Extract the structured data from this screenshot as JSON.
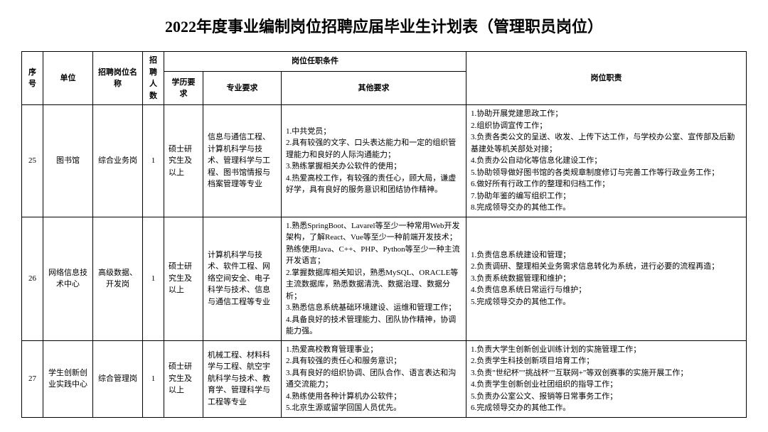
{
  "title": "2022年度事业编制岗位招聘应届毕业生计划表（管理职员岗位）",
  "headers": {
    "seq": "序号",
    "unit": "单位",
    "position": "招聘岗位名称",
    "count": "招聘人数",
    "conditions_group": "岗位任职条件",
    "edu": "学历要求",
    "major": "专业要求",
    "other": "其他要求",
    "duty": "岗位职责"
  },
  "rows": [
    {
      "seq": "25",
      "unit": "图书馆",
      "position": "综合业务岗",
      "count": "1",
      "edu": "硕士研究生及以上",
      "major": "信息与通信工程、计算机科学与技术、管理科学与工程、图书馆情报与档案管理等专业",
      "other": [
        "1.中共党员；",
        "2.具有较强的文字、口头表达能力和一定的组织管理能力和良好的人际沟通能力；",
        "3.熟练掌握相关办公软件的使用；",
        "4.热爱高校工作，有较强的责任心，顾大局，谦虚好学，具有良好的服务意识和团结协作精神。"
      ],
      "duty": [
        "1.协助开展党建思政工作；",
        "2.组织协调宣传工作；",
        "3.负责各类公文的呈送、收发、上传下达工作，与学校办公室、宣传部及后勤基建处等机关部处对接；",
        "4.负责办公自动化等信息化建设工作；",
        "5.协助领导做好图书馆的各类规章制度修订与完善工作等行政业务工作；",
        "6.做好所有行政工作的整理和归档工作；",
        "7.协助年鉴的编写组织工作；",
        "8.完成领导交办的其他工作。"
      ]
    },
    {
      "seq": "26",
      "unit": "网络信息技术中心",
      "position": "高级数据、开发岗",
      "count": "1",
      "edu": "硕士研究生及以上",
      "major": "计算机科学与技术、软件工程、网络空间安全、电子科学与技术、信息与通信工程等专业",
      "other": [
        "1.熟悉SpringBoot、Lavarel等至少一种常用Web开发架构，了解React、Vue等至少一种前端开发技术；熟练使用Java、C++、PHP、Python等至少一种主流开发语言；",
        "2.掌握数据库相关知识，熟悉MySQL、ORACLE等主流数据库，熟悉数据清洗、数据治理、数据分析；",
        "3.熟悉信息系统基础环境建设、运维和管理工作；",
        "4.具备良好的技术管理能力、团队协作精神，协调能力强。"
      ],
      "duty": [
        "1.负责信息系统建设和管理；",
        "2.负责调研、整理相关业务需求信息转化为系统，进行必要的流程再造；",
        "3.负责系统数据管理和维护；",
        "4.负责信息系统日常运行与维护；",
        "5.完成领导交办的其他工作。"
      ]
    },
    {
      "seq": "27",
      "unit": "学生创新创业实践中心",
      "position": "综合管理岗",
      "count": "1",
      "edu": "硕士研究生及以上",
      "major": "机械工程、材料科学与工程、航空宇航科学与技术、教育学、管理科学与工程等专业",
      "other": [
        "1.热爱高校教育管理事业；",
        "2.具有较强的责任心和服务意识；",
        "3.具有良好的组织协调、团队合作、语言表达和沟通交流能力；",
        "4.熟练使用各种计算机办公软件；",
        "5.北京生源或留学回国人员优先。"
      ],
      "duty": [
        "1.负责大学生创新创业训练计划的实施管理工作；",
        "2.负责学生科技创新项目培育工作；",
        "3.负责\"世纪杯\"\"挑战杯\"\"互联网+\"等双创赛事的实施开展工作；",
        "4.负责学生创新创业社团组织的指导工作；",
        "5.负责办公室公文、报销等日常事务工作；",
        "6.完成领导交办的其他工作。"
      ]
    }
  ]
}
